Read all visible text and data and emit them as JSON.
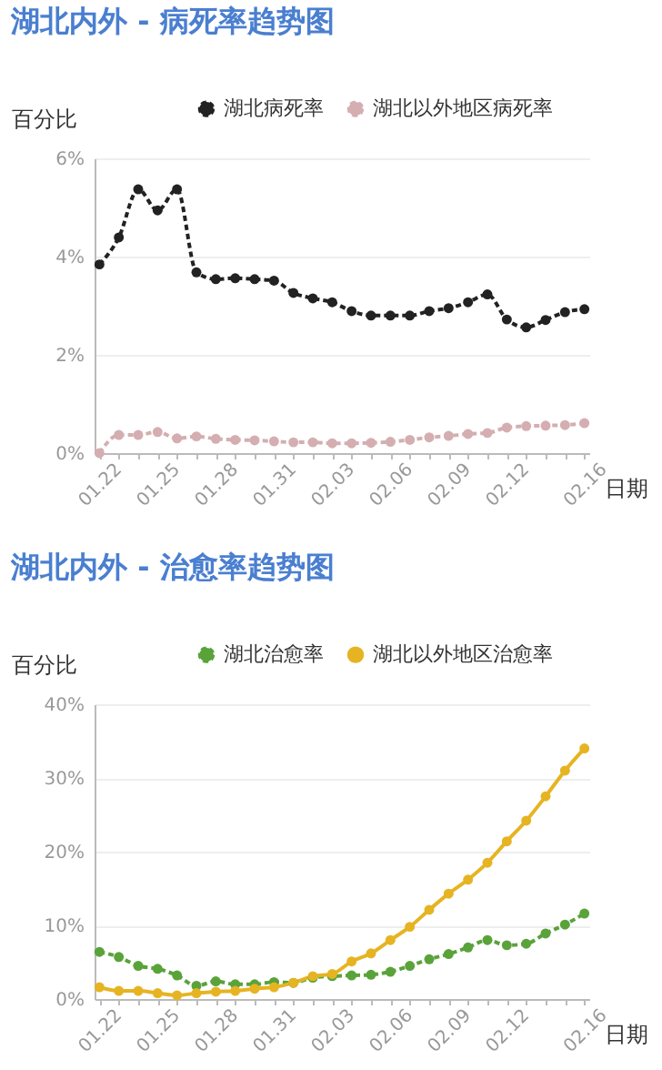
{
  "chart_data": [
    {
      "type": "line",
      "title": "湖北内外 - 病死率趋势图",
      "ylabel": "百分比",
      "xlabel": "日期",
      "categories": [
        "01.22",
        null,
        null,
        "01.25",
        null,
        null,
        "01.28",
        null,
        null,
        "01.31",
        null,
        null,
        "02.03",
        null,
        null,
        "02.06",
        null,
        null,
        "02.09",
        null,
        null,
        "02.12",
        null,
        null,
        null,
        "02.16"
      ],
      "series": [
        {
          "name": "湖北病死率",
          "color": "#222222",
          "line_style": "dashed",
          "values": [
            3.84,
            4.39,
            5.37,
            4.94,
            5.37,
            3.68,
            3.54,
            3.56,
            3.54,
            3.51,
            3.26,
            3.15,
            3.07,
            2.89,
            2.8,
            2.8,
            2.8,
            2.89,
            2.95,
            3.07,
            3.23,
            2.72,
            2.56,
            2.71,
            2.87,
            2.93
          ]
        },
        {
          "name": "湖北以外地区病死率",
          "color": "#d4aeb1",
          "line_style": "dashed",
          "values": [
            0,
            0.37,
            0.37,
            0.43,
            0.3,
            0.34,
            0.29,
            0.27,
            0.26,
            0.24,
            0.22,
            0.22,
            0.2,
            0.2,
            0.21,
            0.23,
            0.27,
            0.32,
            0.35,
            0.39,
            0.41,
            0.52,
            0.55,
            0.56,
            0.57,
            0.61
          ]
        }
      ],
      "ylim": [
        0,
        6
      ],
      "yticks": [
        {
          "value": 0,
          "label": "0%"
        },
        {
          "value": 2,
          "label": "2%"
        },
        {
          "value": 4,
          "label": "4%"
        },
        {
          "value": 6,
          "label": "6%"
        }
      ],
      "grid": "y",
      "legend": "top right",
      "marker": "circle"
    },
    {
      "type": "line",
      "title": "湖北内外 - 治愈率趋势图",
      "ylabel": "百分比",
      "xlabel": "日期",
      "categories": [
        "01.22",
        null,
        null,
        "01.25",
        null,
        null,
        "01.28",
        null,
        null,
        "01.31",
        null,
        null,
        "02.03",
        null,
        null,
        "02.06",
        null,
        null,
        "02.09",
        null,
        null,
        "02.12",
        null,
        null,
        null,
        "02.16"
      ],
      "series": [
        {
          "name": "湖北治愈率",
          "color": "#5aa33a",
          "line_style": "dashed",
          "values": [
            6.4,
            5.7,
            4.5,
            4.1,
            3.2,
            1.8,
            2.4,
            2.0,
            2.0,
            2.3,
            2.2,
            2.9,
            3.1,
            3.2,
            3.3,
            3.7,
            4.5,
            5.4,
            6.1,
            7.0,
            8.0,
            7.3,
            7.5,
            8.9,
            10.1,
            11.6
          ]
        },
        {
          "name": "湖北以外地区治愈率",
          "color": "#e6b422",
          "line_style": "solid",
          "values": [
            1.6,
            1.1,
            1.1,
            0.8,
            0.5,
            0.8,
            1.0,
            1.1,
            1.4,
            1.6,
            2.2,
            3.1,
            3.4,
            5.1,
            6.2,
            8.0,
            9.8,
            12.1,
            14.3,
            16.2,
            18.5,
            21.4,
            24.2,
            27.5,
            31.0,
            34.0
          ]
        }
      ],
      "ylim": [
        0,
        40
      ],
      "yticks": [
        {
          "value": 0,
          "label": "0%"
        },
        {
          "value": 10,
          "label": "10%"
        },
        {
          "value": 20,
          "label": "20%"
        },
        {
          "value": 30,
          "label": "30%"
        },
        {
          "value": 40,
          "label": "40%"
        }
      ],
      "grid": "y",
      "legend": "top right",
      "marker": "circle"
    }
  ]
}
